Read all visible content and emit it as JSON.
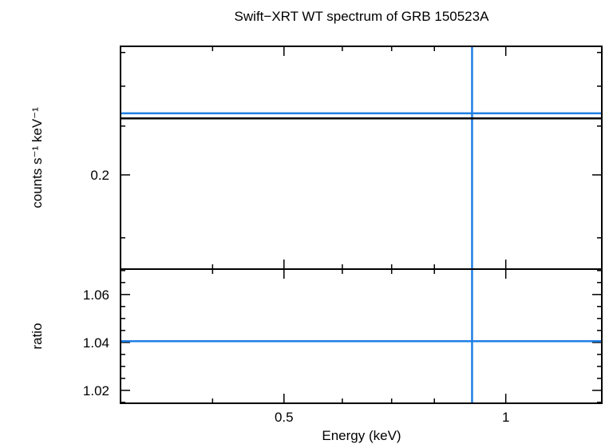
{
  "chart_data": {
    "type": "line",
    "title": "Swift−XRT WT spectrum of GRB 150523A",
    "xlabel": "Energy (keV)",
    "x_scale": "log",
    "xlim": [
      0.3,
      1.35
    ],
    "x_ticks": [
      {
        "value": 0.5,
        "label": "0.5"
      },
      {
        "value": 1,
        "label": "1"
      }
    ],
    "colors": {
      "data": "#1f7fe5",
      "model": "#000000",
      "axes": "#000000"
    },
    "panels": [
      {
        "id": "spectrum",
        "ylabel": "counts s⁻¹ keV⁻¹",
        "y_scale": "log",
        "ylim": [
          0.13,
          0.36
        ],
        "y_ticks": [
          {
            "value": 0.2,
            "label": "0.2"
          }
        ],
        "series": [
          {
            "role": "data",
            "x_center": 0.9,
            "x_range": [
              0.3,
              1.35
            ],
            "y": 0.265
          },
          {
            "role": "model",
            "x_range": [
              0.3,
              1.35
            ],
            "y": 0.259
          }
        ]
      },
      {
        "id": "ratio",
        "ylabel": "ratio",
        "y_scale": "linear",
        "ylim": [
          1.0146,
          1.0706
        ],
        "y_ticks": [
          {
            "value": 1.02,
            "label": "1.02"
          },
          {
            "value": 1.04,
            "label": "1.04"
          },
          {
            "value": 1.06,
            "label": "1.06"
          }
        ],
        "series": [
          {
            "role": "data",
            "x_center": 0.9,
            "x_range": [
              0.3,
              1.35
            ],
            "y": 1.0405
          }
        ]
      }
    ]
  }
}
